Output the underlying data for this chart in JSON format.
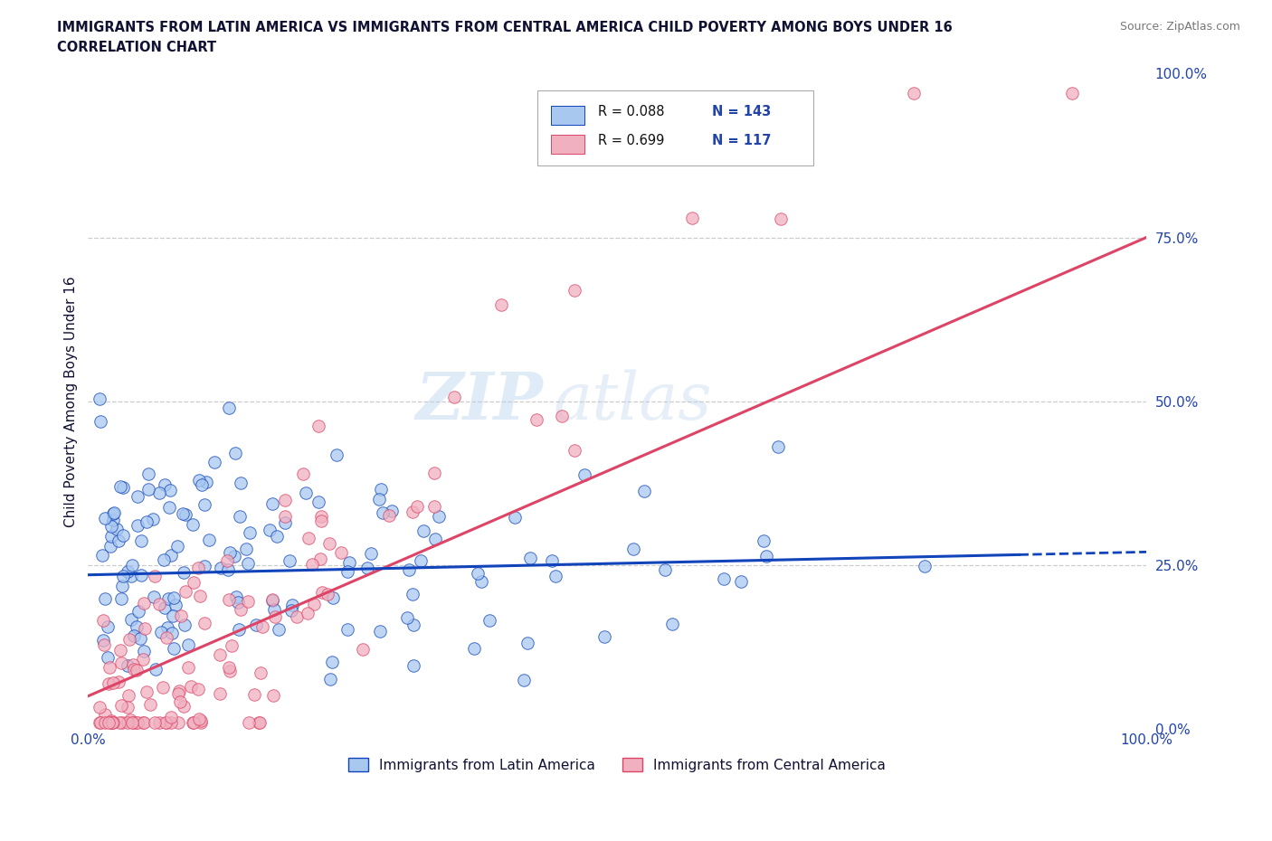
{
  "title_line1": "IMMIGRANTS FROM LATIN AMERICA VS IMMIGRANTS FROM CENTRAL AMERICA CHILD POVERTY AMONG BOYS UNDER 16",
  "title_line2": "CORRELATION CHART",
  "source_text": "Source: ZipAtlas.com",
  "ylabel": "Child Poverty Among Boys Under 16",
  "xlim": [
    0.0,
    1.0
  ],
  "ylim": [
    0.0,
    1.0
  ],
  "grid_color": "#cccccc",
  "watermark_zip": "ZIP",
  "watermark_atlas": "atlas",
  "color_blue": "#a8c8f0",
  "color_pink": "#f0b0c0",
  "line_color_blue": "#1144bb",
  "line_color_pink": "#dd4466",
  "title_color": "#111133",
  "axis_label_color": "#2244aa",
  "blue_line_solid_end": 0.88,
  "pink_line_y_at_0": 0.05,
  "pink_line_y_at_1": 0.75,
  "blue_line_y_at_0": 0.235,
  "blue_line_y_at_1": 0.27,
  "legend_label1": "Immigrants from Latin America",
  "legend_label2": "Immigrants from Central America",
  "bottom_xtick_left": "0.0%",
  "bottom_xtick_right": "100.0%",
  "right_ytick_labels": [
    "0.0%",
    "25.0%",
    "50.0%",
    "75.0%",
    "100.0%"
  ],
  "right_ytick_pos": [
    0.0,
    0.25,
    0.5,
    0.75,
    1.0
  ]
}
